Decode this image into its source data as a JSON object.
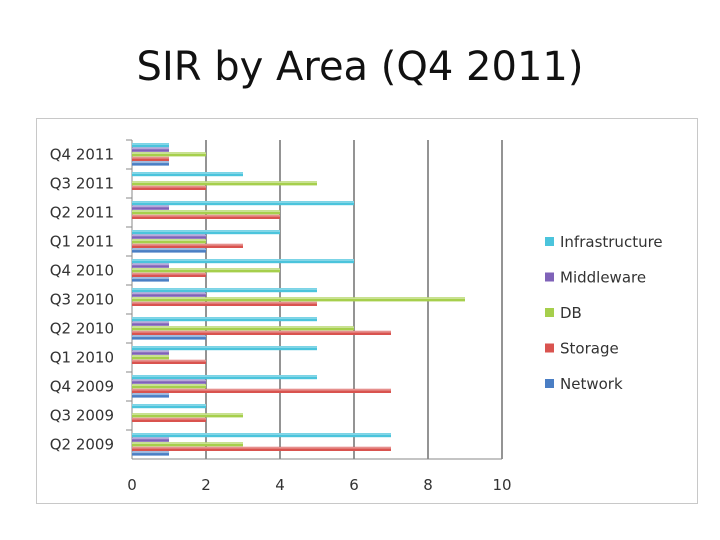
{
  "slide": {
    "title": "SIR by Area (Q4 2011)"
  },
  "chart_data": {
    "type": "bar",
    "orientation": "horizontal",
    "title": "",
    "xlabel": "",
    "ylabel": "",
    "xlim": [
      0,
      10
    ],
    "xticks": [
      0,
      2,
      4,
      6,
      8,
      10
    ],
    "grid": "vertical",
    "legend_position": "right",
    "categories": [
      "Q4 2011",
      "Q3 2011",
      "Q2 2011",
      "Q1 2011",
      "Q4 2010",
      "Q3 2010",
      "Q2 2010",
      "Q1 2010",
      "Q4 2009",
      "Q3 2009",
      "Q2 2009"
    ],
    "series": [
      {
        "name": "Infrastructure",
        "color": "#4bc4dc",
        "values": [
          1,
          3,
          6,
          4,
          6,
          5,
          5,
          5,
          5,
          2,
          7
        ]
      },
      {
        "name": "Middleware",
        "color": "#7f62b8",
        "values": [
          1,
          0,
          1,
          2,
          1,
          2,
          1,
          1,
          2,
          0,
          1
        ]
      },
      {
        "name": "DB",
        "color": "#a6cf4c",
        "values": [
          2,
          5,
          4,
          2,
          4,
          9,
          6,
          1,
          2,
          3,
          3
        ]
      },
      {
        "name": "Storage",
        "color": "#d9534f",
        "values": [
          1,
          2,
          4,
          3,
          2,
          5,
          7,
          2,
          7,
          2,
          7
        ]
      },
      {
        "name": "Network",
        "color": "#4a7ec4",
        "values": [
          1,
          0,
          0,
          2,
          1,
          0,
          2,
          0,
          1,
          0,
          1
        ]
      }
    ]
  }
}
